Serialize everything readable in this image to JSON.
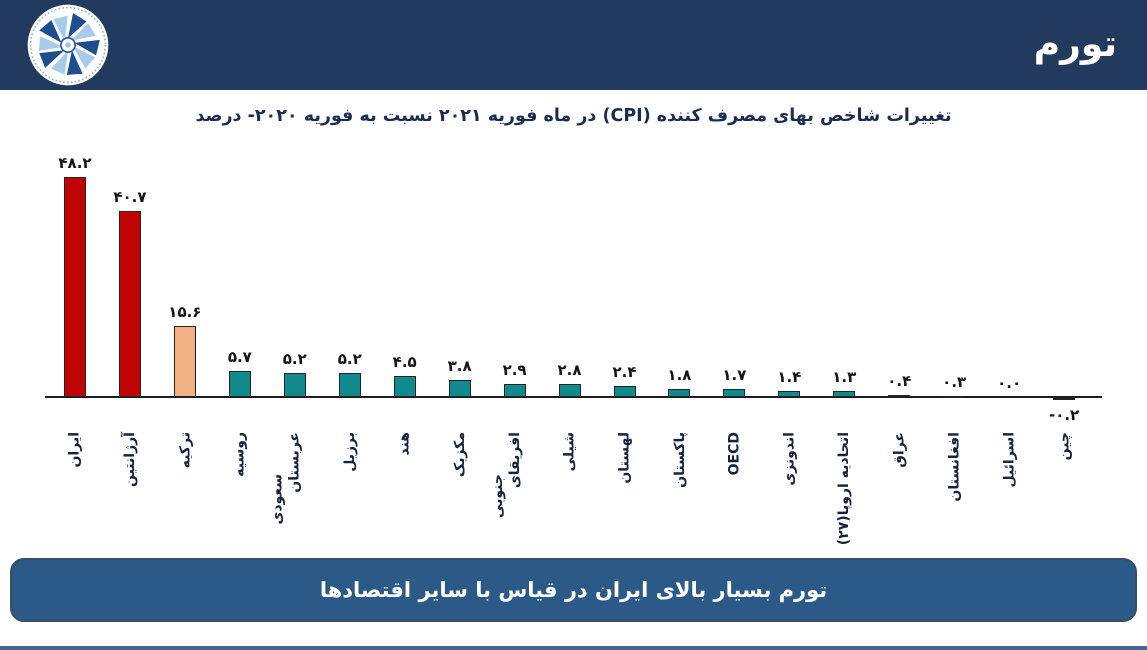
{
  "header": {
    "title": "تورم"
  },
  "logo": {
    "name": "pinwheel-logo",
    "dark_blue": "#1F4E8F",
    "light_blue": "#A9CBEA",
    "ring": "#2B579A"
  },
  "chart_data": {
    "type": "bar",
    "title": "تغییرات شاخص بهای مصرف کننده (CPI) در ماه فوریه ۲۰۲۱ نسبت به فوریه ۲۰۲۰- درصد",
    "unit": "درصد",
    "ylim": [
      -2,
      50
    ],
    "grid": false,
    "legend": "none",
    "categories": [
      "ایران",
      "آرژانتین",
      "ترکیه",
      "روسیه",
      "عربستان سعودی",
      "برزیل",
      "هند",
      "مکزیک",
      "افریقای جنوبی",
      "شیلی",
      "لهستان",
      "پاکستان",
      "OECD",
      "اندونزی",
      "اتحادیه اروپا(۲۷)",
      "عراق",
      "افغانستان",
      "اسرائیل",
      "چین"
    ],
    "category_label_lines": [
      [
        "ایران"
      ],
      [
        "آرژانتین"
      ],
      [
        "ترکیه"
      ],
      [
        "روسیه"
      ],
      [
        "عربستان",
        "سعودی"
      ],
      [
        "برزیل"
      ],
      [
        "هند"
      ],
      [
        "مکزیک"
      ],
      [
        "افریقای",
        "جنوبی"
      ],
      [
        "شیلی"
      ],
      [
        "لهستان"
      ],
      [
        "پاکستان"
      ],
      [
        "OECD"
      ],
      [
        "اندونزی"
      ],
      [
        "اتحادیه اروپا(۲۷)"
      ],
      [
        "عراق"
      ],
      [
        "افغانستان"
      ],
      [
        "اسرائیل"
      ],
      [
        "چین"
      ]
    ],
    "values": [
      48.2,
      40.7,
      15.6,
      5.7,
      5.2,
      5.2,
      4.5,
      3.8,
      2.9,
      2.8,
      2.4,
      1.8,
      1.7,
      1.4,
      1.3,
      0.4,
      0.3,
      0.0,
      -0.2
    ],
    "value_labels": [
      "۴۸.۲",
      "۴۰.۷",
      "۱۵.۶",
      "۵.۷",
      "۵.۲",
      "۵.۲",
      "۴.۵",
      "۳.۸",
      "۲.۹",
      "۲.۸",
      "۲.۴",
      "۱.۸",
      "۱.۷",
      "۱.۴",
      "۱.۳",
      "۰.۴",
      "۰.۳",
      "۰.۰",
      "-۰.۲"
    ],
    "bar_colors": [
      "#C00404",
      "#C00404",
      "#F2B183",
      "#118A8D",
      "#118A8D",
      "#118A8D",
      "#118A8D",
      "#118A8D",
      "#118A8D",
      "#118A8D",
      "#118A8D",
      "#118A8D",
      "#118A8D",
      "#118A8D",
      "#118A8D",
      "#118A8D",
      "#118A8D",
      "#118A8D",
      "#118A8D"
    ],
    "colors": {
      "highlight_red": "#C00404",
      "highlight_peach": "#F2B183",
      "default_teal": "#118A8D",
      "axis": "#1C1C1C",
      "value_label": "#151515",
      "category_label": "#15233F",
      "title": "#1B2C52"
    }
  },
  "footer": {
    "caption": "تورم بسیار بالای ایران در قیاس با سایر اقتصادها",
    "bg_color": "#2B5A88",
    "border_color": "#3A4E63",
    "bottom_line_color": "#44678F"
  },
  "theme": {
    "header_bg": "#223A5E"
  }
}
